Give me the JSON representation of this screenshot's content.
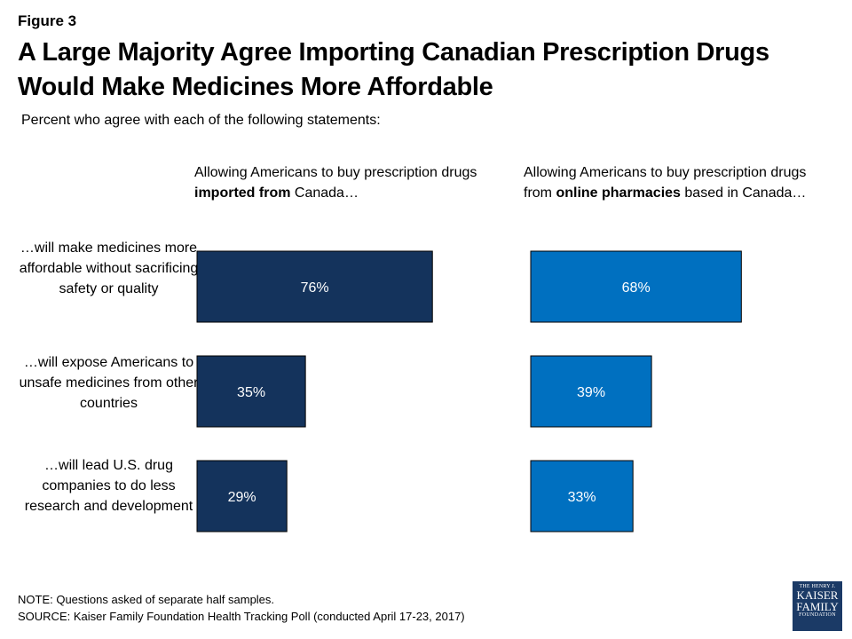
{
  "figure_label": "Figure 3",
  "title": "A Large Majority Agree Importing Canadian Prescription Drugs Would Make Medicines More Affordable",
  "subtitle": "Percent who agree with each of the following statements:",
  "note": "NOTE: Questions asked of separate half samples.",
  "source": "SOURCE: Kaiser Family Foundation Health Tracking Poll (conducted April 17-23, 2017)",
  "logo": {
    "line1": "THE HENRY J.",
    "line2": "KAISER",
    "line3": "FAMILY",
    "line4": "FOUNDATION"
  },
  "columns": [
    {
      "pre": "Allowing Americans to buy prescription drugs ",
      "bold": "imported from",
      "post": " Canada…"
    },
    {
      "pre": "Allowing Americans to buy prescription drugs from ",
      "bold": "online pharmacies",
      "post": " based in Canada…"
    }
  ],
  "colors": {
    "imported": "#14335c",
    "online": "#0070c0",
    "label_text": "#ffffff"
  },
  "chart_data": {
    "type": "bar",
    "orientation": "horizontal",
    "categories": [
      "…will make medicines more affordable without sacrificing safety or quality",
      "…will expose Americans to unsafe medicines from other countries",
      "…will lead U.S. drug companies to do less research and development"
    ],
    "series": [
      {
        "values": [
          76,
          35,
          29
        ],
        "labels": [
          "76%",
          "35%",
          "29%"
        ]
      },
      {
        "values": [
          68,
          39,
          33
        ],
        "labels": [
          "68%",
          "39%",
          "33%"
        ]
      }
    ],
    "xlim": [
      0,
      100
    ],
    "grid": false
  }
}
